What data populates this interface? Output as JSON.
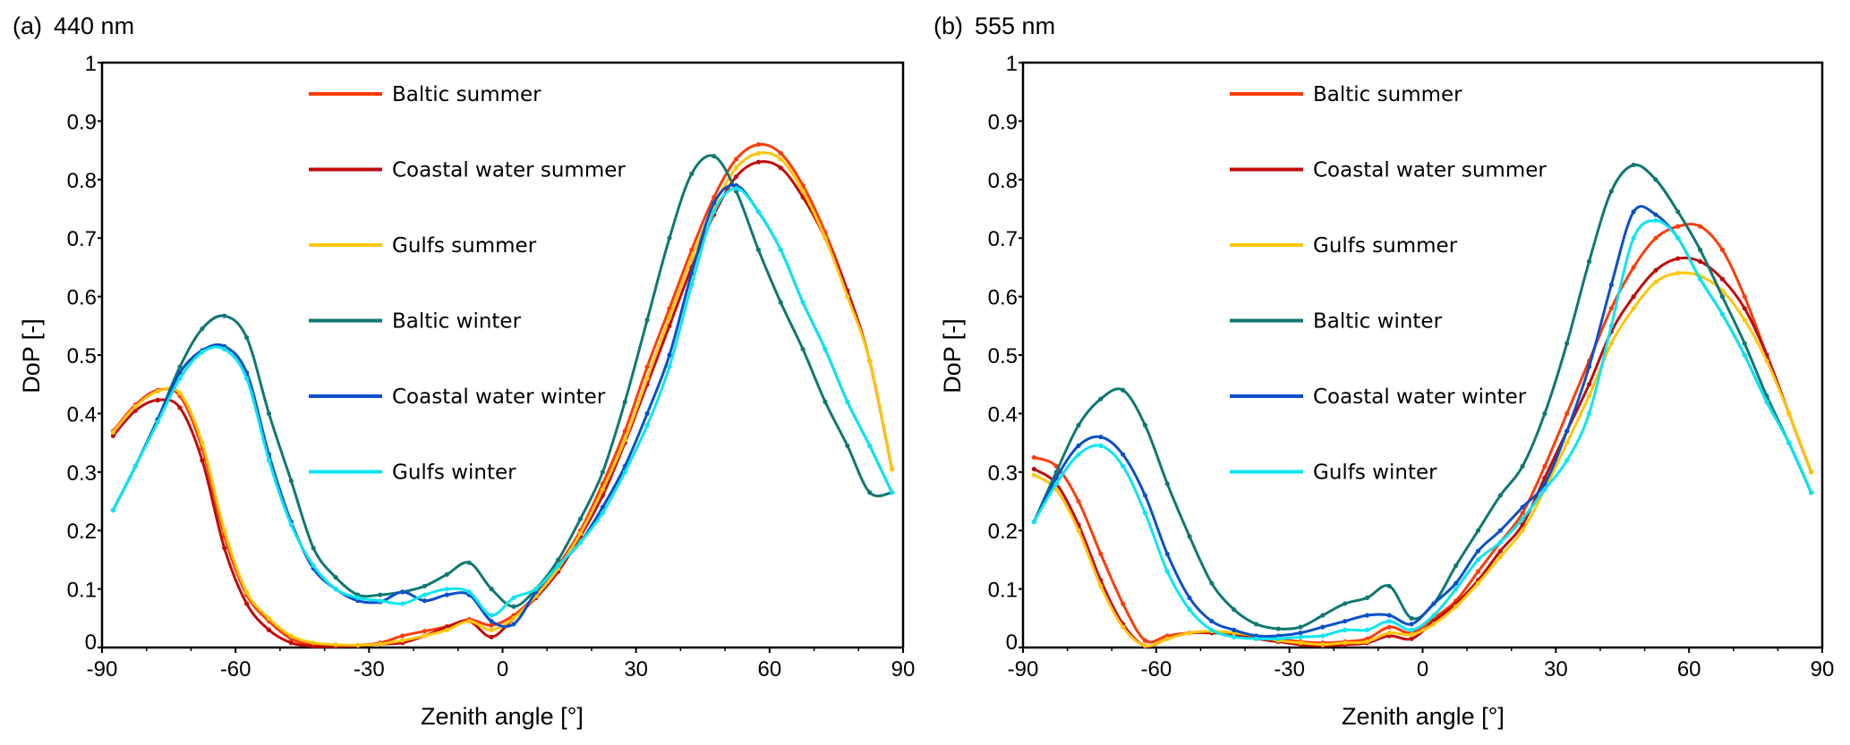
{
  "chart_data": [
    {
      "type": "line",
      "panel_tag": "(a)",
      "title": "440 nm",
      "xlabel": "Zenith angle [°]",
      "ylabel": "DoP [-]",
      "xlim": [
        -90,
        90
      ],
      "ylim": [
        0,
        1
      ],
      "xticks": [
        "-90",
        "-60",
        "-30",
        "0",
        "30",
        "60",
        "90"
      ],
      "yticks": [
        "0",
        "0.1",
        "0.2",
        "0.3",
        "0.4",
        "0.5",
        "0.6",
        "0.7",
        "0.8",
        "0.9",
        "1"
      ],
      "grid": false,
      "legend_position": "top-center",
      "x": [
        -87.5,
        -82.5,
        -77.5,
        -72.5,
        -67.5,
        -62.5,
        -57.5,
        -52.5,
        -47.5,
        -42.5,
        -37.5,
        -32.5,
        -27.5,
        -22.5,
        -17.5,
        -12.5,
        -7.5,
        -2.5,
        2.5,
        7.5,
        12.5,
        17.5,
        22.5,
        27.5,
        32.5,
        37.5,
        42.5,
        47.5,
        52.5,
        57.5,
        62.5,
        67.5,
        72.5,
        77.5,
        82.5,
        87.5
      ],
      "series": [
        {
          "name": "Baltic summer",
          "color": "#ff3c0a",
          "values": [
            0.37,
            0.415,
            0.44,
            0.43,
            0.34,
            0.19,
            0.09,
            0.045,
            0.015,
            0.004,
            0.003,
            0.004,
            0.008,
            0.02,
            0.028,
            0.036,
            0.048,
            0.038,
            0.055,
            0.09,
            0.14,
            0.2,
            0.28,
            0.37,
            0.48,
            0.58,
            0.68,
            0.77,
            0.835,
            0.86,
            0.845,
            0.79,
            0.71,
            0.61,
            0.49,
            0.305
          ]
        },
        {
          "name": "Coastal water summer",
          "color": "#c00a0a",
          "values": [
            0.362,
            0.405,
            0.423,
            0.41,
            0.32,
            0.17,
            0.075,
            0.03,
            0.008,
            0.002,
            0.002,
            0.003,
            0.006,
            0.008,
            0.02,
            0.035,
            0.045,
            0.018,
            0.05,
            0.085,
            0.13,
            0.19,
            0.26,
            0.35,
            0.45,
            0.55,
            0.65,
            0.74,
            0.805,
            0.83,
            0.82,
            0.77,
            0.7,
            0.61,
            0.49,
            0.305
          ]
        },
        {
          "name": "Gulfs summer",
          "color": "#ffc60a",
          "values": [
            0.368,
            0.412,
            0.438,
            0.435,
            0.35,
            0.2,
            0.095,
            0.05,
            0.02,
            0.008,
            0.005,
            0.004,
            0.006,
            0.012,
            0.02,
            0.03,
            0.045,
            0.03,
            0.05,
            0.088,
            0.135,
            0.195,
            0.27,
            0.355,
            0.46,
            0.565,
            0.665,
            0.755,
            0.82,
            0.845,
            0.835,
            0.78,
            0.7,
            0.6,
            0.49,
            0.305
          ]
        },
        {
          "name": "Baltic winter",
          "color": "#0f7873",
          "values": [
            0.235,
            0.31,
            0.39,
            0.48,
            0.545,
            0.567,
            0.53,
            0.4,
            0.285,
            0.17,
            0.12,
            0.09,
            0.09,
            0.095,
            0.105,
            0.125,
            0.145,
            0.1,
            0.07,
            0.1,
            0.15,
            0.22,
            0.3,
            0.42,
            0.56,
            0.7,
            0.81,
            0.84,
            0.78,
            0.68,
            0.59,
            0.51,
            0.42,
            0.345,
            0.265,
            0.265
          ]
        },
        {
          "name": "Coastal water winter",
          "color": "#0a50c8",
          "values": [
            0.235,
            0.31,
            0.39,
            0.47,
            0.508,
            0.515,
            0.47,
            0.33,
            0.215,
            0.135,
            0.1,
            0.08,
            0.078,
            0.095,
            0.08,
            0.09,
            0.09,
            0.045,
            0.04,
            0.095,
            0.14,
            0.18,
            0.24,
            0.31,
            0.4,
            0.5,
            0.64,
            0.76,
            0.79,
            0.745,
            0.68,
            0.59,
            0.51,
            0.42,
            0.345,
            0.265
          ]
        },
        {
          "name": "Gulfs winter",
          "color": "#0ae6f0",
          "values": [
            0.235,
            0.31,
            0.385,
            0.46,
            0.505,
            0.51,
            0.46,
            0.32,
            0.21,
            0.14,
            0.1,
            0.085,
            0.08,
            0.075,
            0.09,
            0.1,
            0.095,
            0.055,
            0.085,
            0.1,
            0.14,
            0.18,
            0.23,
            0.3,
            0.38,
            0.48,
            0.62,
            0.745,
            0.785,
            0.745,
            0.68,
            0.59,
            0.51,
            0.42,
            0.345,
            0.265
          ]
        }
      ]
    },
    {
      "type": "line",
      "panel_tag": "(b)",
      "title": "555 nm",
      "xlabel": "Zenith angle [°]",
      "ylabel": "DoP [-]",
      "xlim": [
        -90,
        90
      ],
      "ylim": [
        0,
        1
      ],
      "xticks": [
        "-90",
        "-60",
        "-30",
        "0",
        "30",
        "60",
        "90"
      ],
      "yticks": [
        "0",
        "0.1",
        "0.2",
        "0.3",
        "0.4",
        "0.5",
        "0.6",
        "0.7",
        "0.8",
        "0.9",
        "1"
      ],
      "grid": false,
      "legend_position": "top-center",
      "x": [
        -87.5,
        -82.5,
        -77.5,
        -72.5,
        -67.5,
        -62.5,
        -57.5,
        -52.5,
        -47.5,
        -42.5,
        -37.5,
        -32.5,
        -27.5,
        -22.5,
        -17.5,
        -12.5,
        -7.5,
        -2.5,
        2.5,
        7.5,
        12.5,
        17.5,
        22.5,
        27.5,
        32.5,
        37.5,
        42.5,
        47.5,
        52.5,
        57.5,
        62.5,
        67.5,
        72.5,
        77.5,
        82.5,
        87.5
      ],
      "series": [
        {
          "name": "Baltic summer",
          "color": "#ff3c0a",
          "values": [
            0.325,
            0.31,
            0.25,
            0.16,
            0.075,
            0.012,
            0.02,
            0.025,
            0.025,
            0.025,
            0.02,
            0.015,
            0.01,
            0.008,
            0.01,
            0.015,
            0.035,
            0.025,
            0.05,
            0.08,
            0.13,
            0.18,
            0.23,
            0.31,
            0.4,
            0.49,
            0.58,
            0.65,
            0.7,
            0.72,
            0.72,
            0.68,
            0.6,
            0.5,
            0.4,
            0.3
          ]
        },
        {
          "name": "Coastal water summer",
          "color": "#c00a0a",
          "values": [
            0.305,
            0.28,
            0.21,
            0.115,
            0.04,
            0.003,
            0.015,
            0.025,
            0.025,
            0.022,
            0.015,
            0.01,
            0.005,
            0.003,
            0.005,
            0.008,
            0.02,
            0.015,
            0.045,
            0.075,
            0.115,
            0.165,
            0.21,
            0.29,
            0.37,
            0.45,
            0.54,
            0.6,
            0.645,
            0.665,
            0.66,
            0.63,
            0.58,
            0.5,
            0.4,
            0.3
          ]
        },
        {
          "name": "Gulfs summer",
          "color": "#ffc60a",
          "values": [
            0.295,
            0.27,
            0.2,
            0.105,
            0.035,
            0.003,
            0.015,
            0.025,
            0.028,
            0.025,
            0.02,
            0.012,
            0.008,
            0.005,
            0.008,
            0.01,
            0.025,
            0.022,
            0.04,
            0.07,
            0.11,
            0.155,
            0.2,
            0.27,
            0.35,
            0.43,
            0.52,
            0.58,
            0.625,
            0.64,
            0.635,
            0.61,
            0.56,
            0.49,
            0.4,
            0.3
          ]
        },
        {
          "name": "Baltic winter",
          "color": "#0f7873",
          "values": [
            0.215,
            0.3,
            0.38,
            0.425,
            0.44,
            0.38,
            0.28,
            0.19,
            0.11,
            0.065,
            0.04,
            0.032,
            0.035,
            0.055,
            0.075,
            0.085,
            0.105,
            0.05,
            0.075,
            0.14,
            0.2,
            0.26,
            0.31,
            0.4,
            0.52,
            0.66,
            0.78,
            0.825,
            0.8,
            0.745,
            0.68,
            0.6,
            0.52,
            0.43,
            0.35,
            0.265
          ]
        },
        {
          "name": "Coastal water winter",
          "color": "#0a50c8",
          "values": [
            0.215,
            0.29,
            0.345,
            0.36,
            0.33,
            0.26,
            0.16,
            0.085,
            0.045,
            0.03,
            0.02,
            0.02,
            0.025,
            0.035,
            0.045,
            0.055,
            0.055,
            0.04,
            0.075,
            0.11,
            0.165,
            0.2,
            0.24,
            0.28,
            0.37,
            0.48,
            0.62,
            0.745,
            0.74,
            0.7,
            0.63,
            0.57,
            0.5,
            0.42,
            0.35,
            0.265
          ]
        },
        {
          "name": "Gulfs winter",
          "color": "#0ae6f0",
          "values": [
            0.215,
            0.28,
            0.33,
            0.345,
            0.31,
            0.23,
            0.13,
            0.065,
            0.03,
            0.018,
            0.015,
            0.015,
            0.018,
            0.02,
            0.03,
            0.03,
            0.045,
            0.03,
            0.055,
            0.1,
            0.15,
            0.18,
            0.22,
            0.27,
            0.32,
            0.4,
            0.55,
            0.7,
            0.73,
            0.7,
            0.63,
            0.57,
            0.5,
            0.42,
            0.35,
            0.265
          ]
        }
      ]
    }
  ]
}
